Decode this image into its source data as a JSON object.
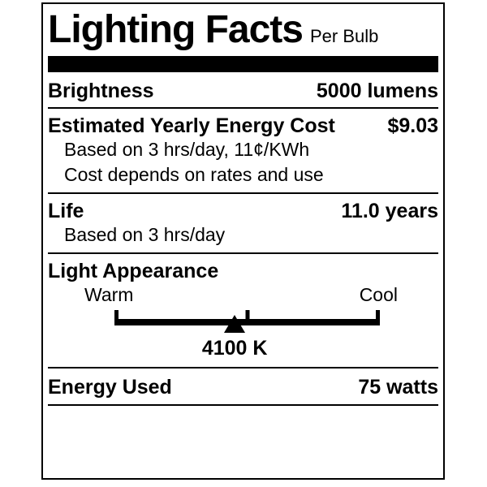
{
  "label": {
    "title": "Lighting Facts",
    "subtitle": "Per Bulb",
    "brightness": {
      "label": "Brightness",
      "value": "5000 lumens"
    },
    "energy_cost": {
      "label": "Estimated Yearly Energy Cost",
      "value": "$9.03",
      "note1": "Based on 3 hrs/day, 11¢/KWh",
      "note2": "Cost depends on rates and use"
    },
    "life": {
      "label": "Life",
      "value": "11.0 years",
      "note": "Based on 3 hrs/day"
    },
    "light_appearance": {
      "label": "Light Appearance",
      "warm_label": "Warm",
      "cool_label": "Cool",
      "color_temperature": "4100 K",
      "pointer_left": "45.3%"
    },
    "energy_used": {
      "label": "Energy Used",
      "value": "75 watts"
    },
    "colors": {
      "ink": "#000000",
      "background": "#ffffff"
    }
  }
}
